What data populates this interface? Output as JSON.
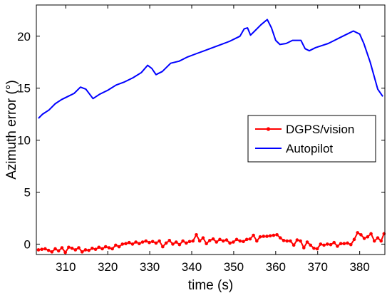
{
  "chart_data": {
    "type": "line",
    "xlabel": "time (s)",
    "ylabel": "Azimuth error (°)",
    "xlim": [
      303,
      386
    ],
    "ylim": [
      -1,
      23
    ],
    "xticks": [
      310,
      320,
      330,
      340,
      350,
      360,
      370,
      380
    ],
    "yticks": [
      0,
      5,
      10,
      15,
      20
    ],
    "grid": false,
    "legend_position": "center-right",
    "series": [
      {
        "name": "DGPS/vision",
        "color": "#ff0000",
        "marker": "dot",
        "points": [
          [
            303.5,
            -0.55
          ],
          [
            304.3,
            -0.5
          ],
          [
            305.1,
            -0.45
          ],
          [
            305.9,
            -0.6
          ],
          [
            306.7,
            -0.75
          ],
          [
            307.5,
            -0.45
          ],
          [
            308.3,
            -0.65
          ],
          [
            309.1,
            -0.35
          ],
          [
            309.9,
            -0.8
          ],
          [
            310.7,
            -0.3
          ],
          [
            311.5,
            -0.4
          ],
          [
            312.3,
            -0.55
          ],
          [
            313.1,
            -0.35
          ],
          [
            313.9,
            -0.75
          ],
          [
            314.7,
            -0.55
          ],
          [
            315.5,
            -0.6
          ],
          [
            316.3,
            -0.4
          ],
          [
            317.1,
            -0.5
          ],
          [
            317.9,
            -0.3
          ],
          [
            318.7,
            -0.45
          ],
          [
            319.5,
            -0.25
          ],
          [
            320.3,
            -0.35
          ],
          [
            321.1,
            -0.45
          ],
          [
            321.9,
            -0.1
          ],
          [
            322.7,
            -0.25
          ],
          [
            323.5,
            0.0
          ],
          [
            324.3,
            0.05
          ],
          [
            325.1,
            0.15
          ],
          [
            325.9,
            0.0
          ],
          [
            326.7,
            0.2
          ],
          [
            327.5,
            0.05
          ],
          [
            328.3,
            0.2
          ],
          [
            329.1,
            0.3
          ],
          [
            329.9,
            0.15
          ],
          [
            330.7,
            0.25
          ],
          [
            331.5,
            0.1
          ],
          [
            332.3,
            0.3
          ],
          [
            333.1,
            -0.25
          ],
          [
            333.9,
            0.1
          ],
          [
            334.7,
            0.35
          ],
          [
            335.5,
            0.0
          ],
          [
            336.3,
            0.2
          ],
          [
            337.1,
            -0.05
          ],
          [
            337.9,
            0.3
          ],
          [
            338.7,
            0.1
          ],
          [
            339.5,
            0.25
          ],
          [
            340.3,
            0.3
          ],
          [
            341.1,
            0.9
          ],
          [
            341.9,
            0.3
          ],
          [
            342.7,
            0.6
          ],
          [
            343.5,
            0.05
          ],
          [
            344.3,
            0.35
          ],
          [
            345.1,
            0.5
          ],
          [
            345.9,
            0.2
          ],
          [
            346.7,
            0.45
          ],
          [
            347.5,
            0.3
          ],
          [
            348.3,
            0.4
          ],
          [
            349.1,
            0.1
          ],
          [
            349.9,
            0.2
          ],
          [
            350.7,
            0.45
          ],
          [
            351.5,
            0.3
          ],
          [
            352.3,
            0.25
          ],
          [
            353.1,
            0.45
          ],
          [
            353.9,
            0.5
          ],
          [
            354.7,
            0.85
          ],
          [
            355.5,
            0.3
          ],
          [
            356.3,
            0.7
          ],
          [
            357.1,
            0.75
          ],
          [
            357.9,
            0.75
          ],
          [
            358.7,
            0.8
          ],
          [
            359.5,
            0.85
          ],
          [
            360.3,
            0.9
          ],
          [
            361.1,
            0.6
          ],
          [
            361.9,
            0.35
          ],
          [
            362.7,
            0.3
          ],
          [
            363.5,
            0.3
          ],
          [
            364.3,
            -0.1
          ],
          [
            365.1,
            0.4
          ],
          [
            365.9,
            0.3
          ],
          [
            366.7,
            -0.35
          ],
          [
            367.5,
            0.2
          ],
          [
            368.3,
            -0.1
          ],
          [
            369.1,
            -0.4
          ],
          [
            369.9,
            -0.45
          ],
          [
            370.7,
            0.0
          ],
          [
            371.5,
            -0.1
          ],
          [
            372.3,
            0.0
          ],
          [
            373.1,
            -0.05
          ],
          [
            373.9,
            0.15
          ],
          [
            374.7,
            -0.2
          ],
          [
            375.5,
            0.05
          ],
          [
            376.3,
            0.05
          ],
          [
            377.1,
            0.1
          ],
          [
            377.9,
            -0.05
          ],
          [
            378.7,
            0.45
          ],
          [
            379.5,
            1.1
          ],
          [
            380.3,
            0.9
          ],
          [
            381.1,
            0.55
          ],
          [
            381.9,
            0.7
          ],
          [
            382.7,
            1.0
          ],
          [
            383.5,
            0.3
          ],
          [
            384.3,
            0.6
          ],
          [
            385.1,
            0.3
          ],
          [
            385.8,
            1.0
          ]
        ]
      },
      {
        "name": "Autopilot",
        "color": "#0000ff",
        "marker": "none",
        "points": [
          [
            303.5,
            12.1
          ],
          [
            304.5,
            12.5
          ],
          [
            306,
            12.9
          ],
          [
            307.5,
            13.5
          ],
          [
            309,
            13.9
          ],
          [
            310.5,
            14.2
          ],
          [
            312,
            14.5
          ],
          [
            313.5,
            15.1
          ],
          [
            314.8,
            14.9
          ],
          [
            316.5,
            14.0
          ],
          [
            318,
            14.4
          ],
          [
            320,
            14.8
          ],
          [
            322,
            15.3
          ],
          [
            324,
            15.6
          ],
          [
            326,
            16.0
          ],
          [
            328,
            16.5
          ],
          [
            329.5,
            17.2
          ],
          [
            330.5,
            16.9
          ],
          [
            331.5,
            16.3
          ],
          [
            333,
            16.6
          ],
          [
            335,
            17.4
          ],
          [
            337,
            17.6
          ],
          [
            339,
            18.0
          ],
          [
            341,
            18.3
          ],
          [
            343,
            18.6
          ],
          [
            345,
            18.9
          ],
          [
            347,
            19.2
          ],
          [
            349,
            19.5
          ],
          [
            350.5,
            19.8
          ],
          [
            351.5,
            20.0
          ],
          [
            352.5,
            20.7
          ],
          [
            353.3,
            20.8
          ],
          [
            354,
            20.1
          ],
          [
            355,
            20.5
          ],
          [
            356.5,
            21.1
          ],
          [
            358,
            21.6
          ],
          [
            359,
            20.8
          ],
          [
            360,
            19.6
          ],
          [
            361,
            19.2
          ],
          [
            362.5,
            19.3
          ],
          [
            364,
            19.6
          ],
          [
            366,
            19.6
          ],
          [
            367,
            18.8
          ],
          [
            368,
            18.6
          ],
          [
            369.5,
            18.9
          ],
          [
            371,
            19.1
          ],
          [
            372.5,
            19.3
          ],
          [
            374,
            19.6
          ],
          [
            375.5,
            19.9
          ],
          [
            377,
            20.2
          ],
          [
            378.5,
            20.5
          ],
          [
            380,
            20.2
          ],
          [
            381,
            19.3
          ],
          [
            382.5,
            17.5
          ],
          [
            384.3,
            14.9
          ],
          [
            385.5,
            14.2
          ]
        ]
      }
    ]
  }
}
